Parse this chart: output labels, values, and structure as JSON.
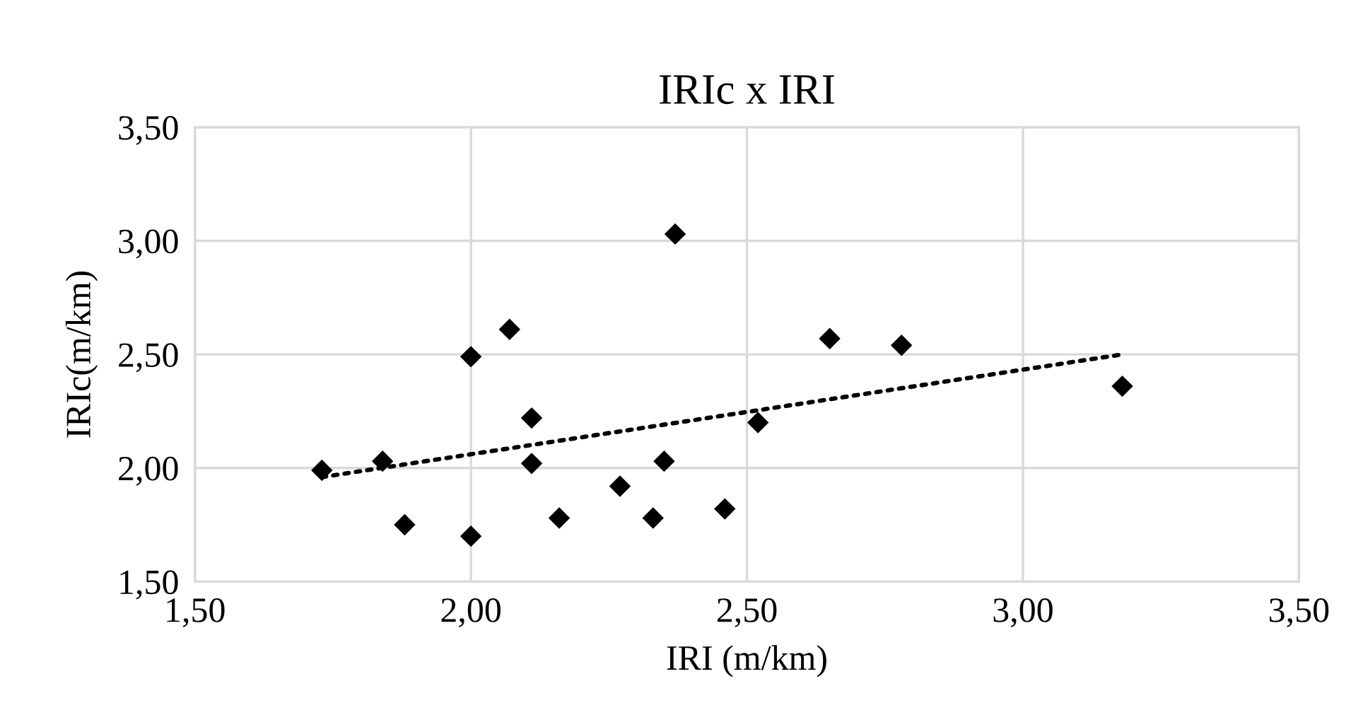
{
  "chart_data": {
    "type": "scatter",
    "title": "IRIc x IRI",
    "xlabel": "IRI (m/km)",
    "ylabel": "IRIc(m/km)",
    "xlim": [
      1.5,
      3.5
    ],
    "ylim": [
      1.5,
      3.5
    ],
    "xticks": [
      {
        "value": 1.5,
        "label": "1,50"
      },
      {
        "value": 2.0,
        "label": "2,00"
      },
      {
        "value": 2.5,
        "label": "2,50"
      },
      {
        "value": 3.0,
        "label": "3,00"
      },
      {
        "value": 3.5,
        "label": "3,50"
      }
    ],
    "yticks": [
      {
        "value": 1.5,
        "label": "1,50"
      },
      {
        "value": 2.0,
        "label": "2,00"
      },
      {
        "value": 2.5,
        "label": "2,50"
      },
      {
        "value": 3.0,
        "label": "3,00"
      },
      {
        "value": 3.5,
        "label": "3,50"
      }
    ],
    "grid": true,
    "legend": false,
    "series": [
      {
        "color": "#000000",
        "marker": "diamond",
        "x": [
          1.73,
          1.84,
          1.88,
          2.0,
          2.0,
          2.07,
          2.11,
          2.11,
          2.16,
          2.27,
          2.37,
          2.33,
          2.35,
          2.46,
          2.52,
          2.65,
          2.78,
          3.18
        ],
        "values": [
          1.99,
          2.03,
          1.75,
          2.49,
          1.7,
          2.61,
          2.22,
          2.02,
          1.78,
          1.92,
          3.03,
          1.78,
          2.03,
          1.82,
          2.2,
          2.57,
          2.54,
          2.36
        ]
      },
      {
        "type": "line",
        "color": "#000000",
        "line_style": "dotted",
        "marker": "none",
        "x": [
          1.73,
          3.18
        ],
        "values": [
          1.96,
          2.5
        ]
      }
    ]
  }
}
